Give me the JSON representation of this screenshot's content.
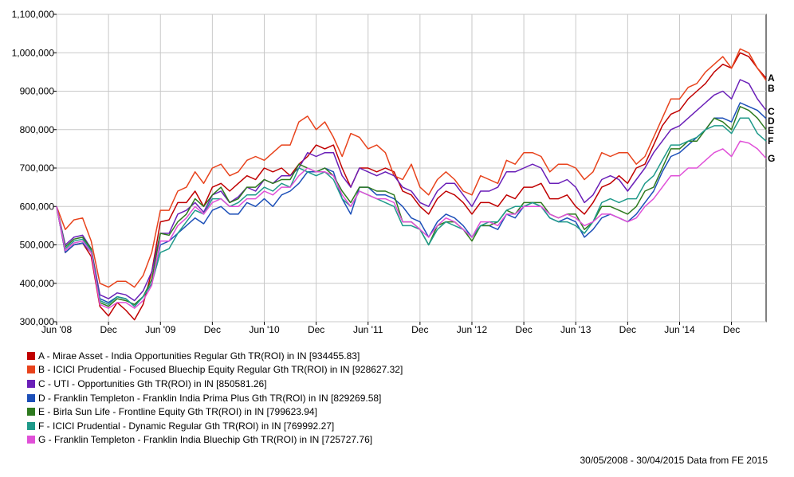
{
  "chart_data": {
    "type": "line",
    "title": "",
    "xlabel": "",
    "ylabel": "",
    "x_ticks": [
      "Jun '08",
      "Dec",
      "Jun '09",
      "Dec",
      "Jun '10",
      "Dec",
      "Jun '11",
      "Dec",
      "Jun '12",
      "Dec",
      "Jun '13",
      "Dec",
      "Jun '14",
      "Dec"
    ],
    "y_ticks": [
      "300,000",
      "400,000",
      "500,000",
      "600,000",
      "700,000",
      "800,000",
      "900,000",
      "1,000,000",
      "1,100,000"
    ],
    "ylim": [
      300000,
      1100000
    ],
    "x_range": [
      "30/05/2008",
      "30/04/2015"
    ],
    "grid": true,
    "legend_position": "bottom",
    "series": [
      {
        "id": "A",
        "name": "A - Mirae Asset - India Opportunities Regular Gth TR(ROI) in IN [934455.83]",
        "color": "#c00000",
        "values": [
          600000,
          480000,
          500000,
          505000,
          470000,
          340000,
          315000,
          350000,
          330000,
          305000,
          345000,
          430000,
          560000,
          565000,
          610000,
          610000,
          640000,
          600000,
          650000,
          660000,
          640000,
          660000,
          680000,
          670000,
          700000,
          690000,
          700000,
          680000,
          710000,
          730000,
          760000,
          750000,
          760000,
          700000,
          650000,
          700000,
          700000,
          690000,
          700000,
          690000,
          640000,
          630000,
          600000,
          580000,
          620000,
          640000,
          630000,
          610000,
          580000,
          610000,
          610000,
          600000,
          630000,
          620000,
          650000,
          650000,
          660000,
          620000,
          620000,
          630000,
          600000,
          580000,
          610000,
          650000,
          660000,
          680000,
          660000,
          700000,
          710000,
          760000,
          810000,
          840000,
          850000,
          880000,
          900000,
          920000,
          950000,
          970000,
          960000,
          1000000,
          990000,
          960000,
          934000
        ]
      },
      {
        "id": "B",
        "name": "B - ICICI Prudential - Focused Bluechip Equity Regular Gth TR(ROI) in IN [928627.32]",
        "color": "#e8431c",
        "values": [
          600000,
          540000,
          565000,
          570000,
          510000,
          400000,
          390000,
          405000,
          405000,
          390000,
          420000,
          480000,
          590000,
          590000,
          640000,
          650000,
          690000,
          660000,
          700000,
          710000,
          680000,
          690000,
          720000,
          730000,
          720000,
          740000,
          760000,
          760000,
          820000,
          835000,
          800000,
          820000,
          780000,
          730000,
          790000,
          780000,
          750000,
          760000,
          740000,
          680000,
          670000,
          710000,
          650000,
          630000,
          670000,
          690000,
          670000,
          640000,
          630000,
          680000,
          670000,
          660000,
          720000,
          710000,
          740000,
          740000,
          730000,
          690000,
          710000,
          710000,
          700000,
          670000,
          690000,
          740000,
          730000,
          740000,
          740000,
          710000,
          730000,
          780000,
          830000,
          880000,
          880000,
          910000,
          920000,
          950000,
          970000,
          990000,
          960000,
          1010000,
          1000000,
          960000,
          928000
        ]
      },
      {
        "id": "C",
        "name": "C - UTI - Opportunities Gth TR(ROI) in IN [850581.26]",
        "color": "#6a1fb8",
        "values": [
          600000,
          500000,
          520000,
          525000,
          490000,
          370000,
          360000,
          375000,
          370000,
          355000,
          380000,
          430000,
          530000,
          530000,
          580000,
          590000,
          610000,
          585000,
          630000,
          640000,
          610000,
          625000,
          650000,
          640000,
          670000,
          660000,
          680000,
          680000,
          700000,
          740000,
          730000,
          740000,
          740000,
          680000,
          650000,
          700000,
          690000,
          680000,
          690000,
          680000,
          650000,
          640000,
          610000,
          600000,
          640000,
          660000,
          660000,
          630000,
          600000,
          640000,
          640000,
          650000,
          690000,
          690000,
          700000,
          710000,
          700000,
          660000,
          660000,
          670000,
          650000,
          610000,
          630000,
          670000,
          680000,
          670000,
          640000,
          670000,
          700000,
          740000,
          770000,
          800000,
          810000,
          830000,
          850000,
          870000,
          890000,
          900000,
          880000,
          930000,
          920000,
          880000,
          850000
        ]
      },
      {
        "id": "D",
        "name": "D - Franklin Templeton - Franklin India Prima Plus Gth TR(ROI) in IN [829269.58]",
        "color": "#1c4fb8",
        "values": [
          600000,
          480000,
          500000,
          505000,
          480000,
          360000,
          350000,
          365000,
          360000,
          340000,
          365000,
          400000,
          500000,
          510000,
          530000,
          550000,
          570000,
          555000,
          590000,
          600000,
          580000,
          580000,
          610000,
          600000,
          620000,
          600000,
          630000,
          640000,
          660000,
          690000,
          690000,
          700000,
          690000,
          620000,
          580000,
          650000,
          650000,
          630000,
          630000,
          620000,
          600000,
          570000,
          560000,
          520000,
          560000,
          580000,
          570000,
          550000,
          520000,
          550000,
          550000,
          540000,
          580000,
          570000,
          600000,
          610000,
          600000,
          570000,
          560000,
          570000,
          560000,
          520000,
          540000,
          570000,
          580000,
          570000,
          560000,
          580000,
          610000,
          640000,
          690000,
          730000,
          740000,
          760000,
          780000,
          800000,
          830000,
          830000,
          820000,
          870000,
          860000,
          850000,
          829000
        ]
      },
      {
        "id": "E",
        "name": "E - Birla Sun Life - Frontline Equity Gth TR(ROI) in IN [799623.94]",
        "color": "#2e7a1f",
        "values": [
          600000,
          495000,
          515000,
          520000,
          490000,
          350000,
          340000,
          360000,
          355000,
          345000,
          365000,
          410000,
          530000,
          525000,
          560000,
          580000,
          620000,
          600000,
          630000,
          650000,
          610000,
          620000,
          650000,
          650000,
          670000,
          660000,
          670000,
          670000,
          710000,
          700000,
          690000,
          700000,
          680000,
          640000,
          610000,
          650000,
          650000,
          640000,
          640000,
          630000,
          560000,
          560000,
          540000,
          500000,
          550000,
          560000,
          560000,
          540000,
          510000,
          550000,
          550000,
          560000,
          590000,
          580000,
          610000,
          610000,
          610000,
          580000,
          570000,
          580000,
          580000,
          540000,
          560000,
          600000,
          600000,
          590000,
          580000,
          600000,
          640000,
          650000,
          700000,
          750000,
          750000,
          770000,
          770000,
          800000,
          830000,
          820000,
          800000,
          860000,
          850000,
          830000,
          800000
        ]
      },
      {
        "id": "F",
        "name": "F - ICICI Prudential - Dynamic Regular Gth TR(ROI) in IN [769992.27]",
        "color": "#1f9a8a",
        "values": [
          600000,
          490000,
          510000,
          515000,
          485000,
          355000,
          345000,
          365000,
          360000,
          340000,
          365000,
          400000,
          480000,
          490000,
          530000,
          560000,
          590000,
          580000,
          620000,
          620000,
          600000,
          610000,
          630000,
          630000,
          650000,
          640000,
          660000,
          650000,
          700000,
          690000,
          680000,
          690000,
          670000,
          620000,
          600000,
          640000,
          630000,
          620000,
          610000,
          600000,
          550000,
          550000,
          540000,
          500000,
          540000,
          560000,
          550000,
          540000,
          520000,
          550000,
          560000,
          560000,
          590000,
          600000,
          600000,
          610000,
          600000,
          570000,
          560000,
          560000,
          550000,
          530000,
          560000,
          610000,
          620000,
          610000,
          620000,
          620000,
          660000,
          680000,
          720000,
          760000,
          760000,
          770000,
          780000,
          800000,
          810000,
          810000,
          790000,
          830000,
          830000,
          790000,
          770000
        ]
      },
      {
        "id": "G",
        "name": "G - Franklin Templeton - Franklin India Bluechip Gth TR(ROI) in IN [725727.76]",
        "color": "#e050d8",
        "values": [
          600000,
          485000,
          505000,
          510000,
          480000,
          345000,
          335000,
          350000,
          350000,
          335000,
          355000,
          395000,
          510000,
          510000,
          550000,
          570000,
          600000,
          580000,
          610000,
          620000,
          600000,
          600000,
          620000,
          620000,
          640000,
          630000,
          650000,
          650000,
          680000,
          700000,
          690000,
          690000,
          680000,
          630000,
          600000,
          640000,
          630000,
          620000,
          620000,
          610000,
          560000,
          560000,
          540000,
          520000,
          550000,
          570000,
          560000,
          540000,
          520000,
          560000,
          560000,
          550000,
          580000,
          580000,
          600000,
          600000,
          600000,
          580000,
          570000,
          580000,
          570000,
          550000,
          560000,
          580000,
          580000,
          570000,
          560000,
          570000,
          600000,
          620000,
          650000,
          680000,
          680000,
          700000,
          700000,
          720000,
          740000,
          750000,
          730000,
          770000,
          765000,
          750000,
          725000
        ]
      }
    ]
  },
  "footer": "30/05/2008 - 30/04/2015 Data from FE 2015"
}
